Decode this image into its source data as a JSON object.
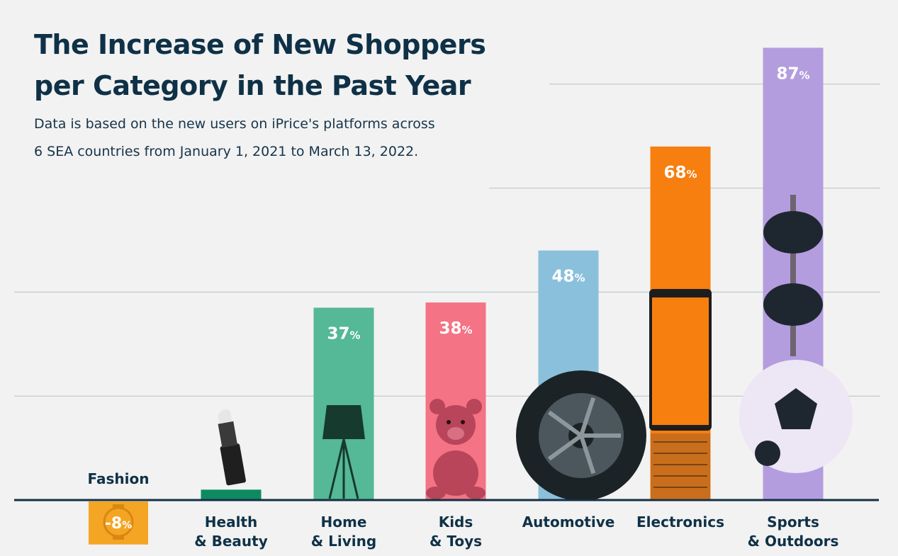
{
  "chart_data": {
    "type": "bar",
    "title_lines": [
      "The Increase of New Shoppers",
      "per Category in the Past Year"
    ],
    "subtitle_lines": [
      "Data is based on the new users on iPrice's platforms across",
      "6 SEA countries from January 1, 2021 to March 13, 2022."
    ],
    "xlabel": "",
    "ylabel": "",
    "ylim": [
      -8,
      87
    ],
    "unit": "%",
    "categories": [
      {
        "key": "fashion",
        "lines": [
          "Fashion"
        ],
        "value": -8,
        "value_label": "-8",
        "color": "#f5a524",
        "icon": "watch-icon"
      },
      {
        "key": "health-beauty",
        "lines": [
          "Health",
          "& Beauty"
        ],
        "value": 2,
        "value_label": "",
        "color": "#0e8a62",
        "icon": "lipstick-icon"
      },
      {
        "key": "home-living",
        "lines": [
          "Home",
          "& Living"
        ],
        "value": 37,
        "value_label": "37",
        "color": "#55b896",
        "icon": "floor-lamp-icon"
      },
      {
        "key": "kids-toys",
        "lines": [
          "Kids",
          "& Toys"
        ],
        "value": 38,
        "value_label": "38",
        "color": "#f47384",
        "icon": "teddy-bear-icon"
      },
      {
        "key": "automotive",
        "lines": [
          "Automotive"
        ],
        "value": 48,
        "value_label": "48",
        "color": "#8ac0dc",
        "icon": "tire-icon"
      },
      {
        "key": "electronics",
        "lines": [
          "Electronics"
        ],
        "value": 68,
        "value_label": "68",
        "color": "#f77f10",
        "icon": "laptop-icon"
      },
      {
        "key": "sports-outdoors",
        "lines": [
          "Sports",
          "& Outdoors"
        ],
        "value": 87,
        "value_label": "87",
        "color": "#b39ddf",
        "icon": "dumbbell-soccer-ball-icon"
      }
    ],
    "gridlines": [
      20,
      40,
      60,
      80
    ],
    "colors": {
      "text": "#0f3147",
      "baseline": "#123046",
      "grid": "#b7bfc4",
      "bar_label": "#ffffff"
    }
  }
}
